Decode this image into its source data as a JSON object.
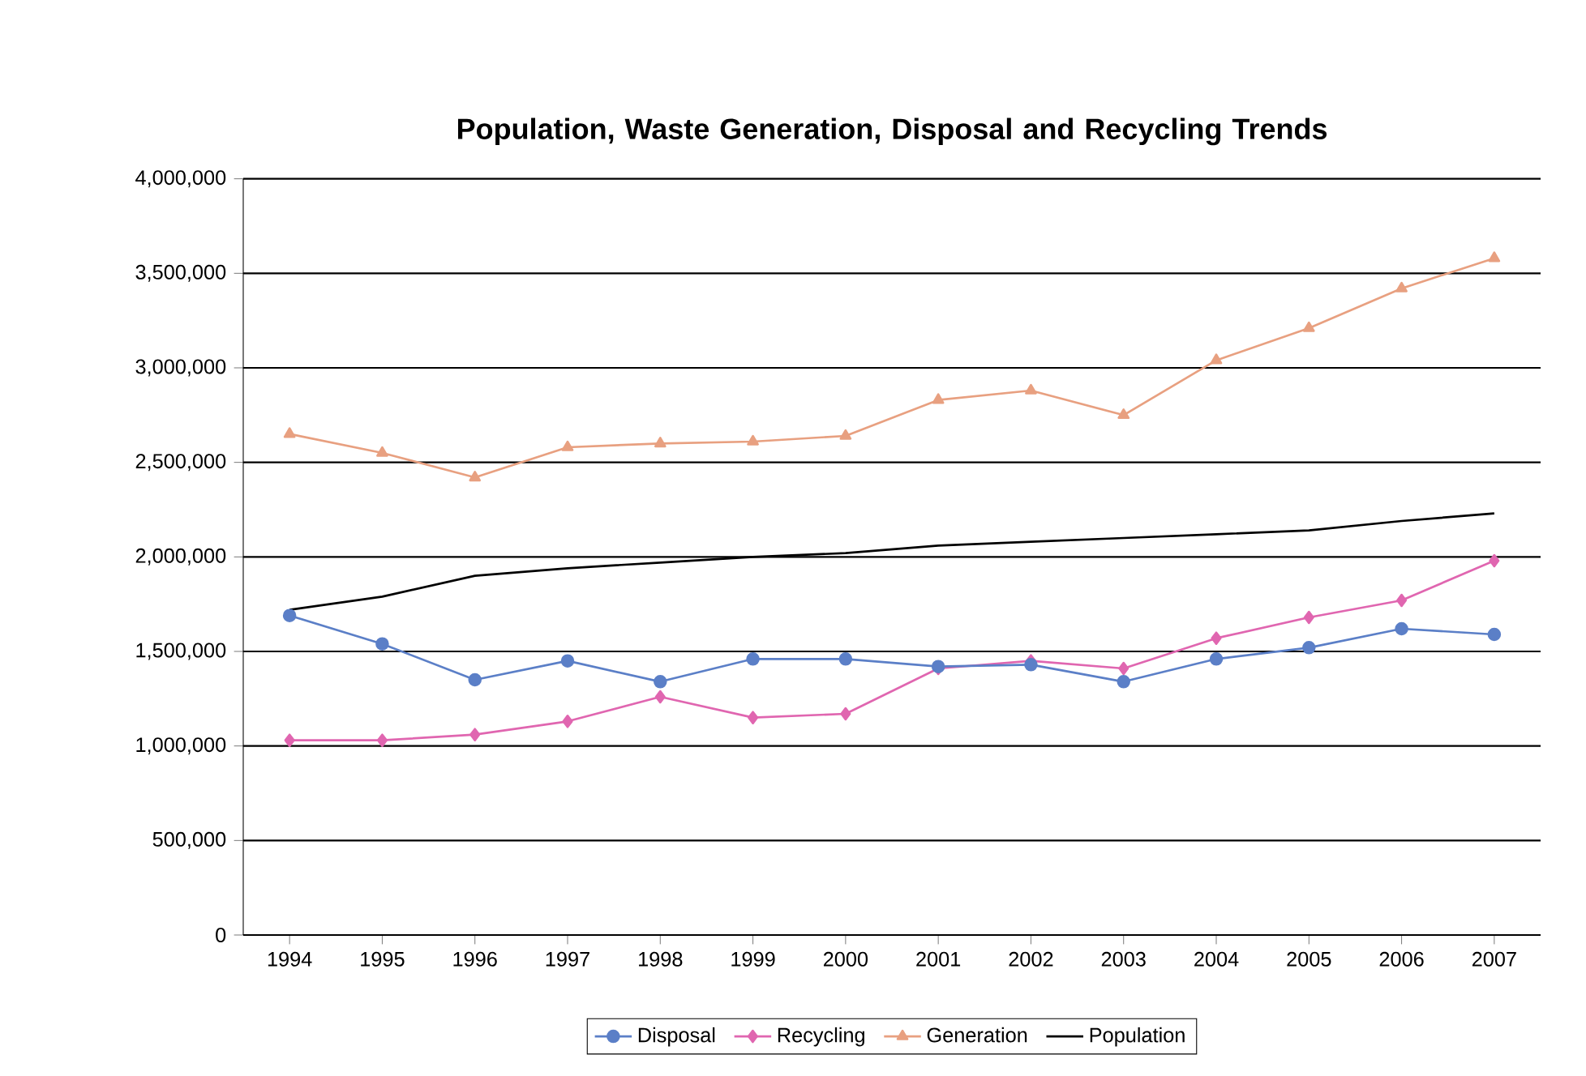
{
  "chart_data": {
    "type": "line",
    "title": "Population, Waste Generation, Disposal and Recycling Trends",
    "categories": [
      "1994",
      "1995",
      "1996",
      "1997",
      "1998",
      "1999",
      "2000",
      "2001",
      "2002",
      "2003",
      "2004",
      "2005",
      "2006",
      "2007"
    ],
    "series": [
      {
        "name": "Disposal",
        "color": "#5b7fc7",
        "marker": "circle",
        "values": [
          1690000,
          1540000,
          1350000,
          1450000,
          1340000,
          1460000,
          1460000,
          1420000,
          1430000,
          1340000,
          1460000,
          1520000,
          1620000,
          1590000
        ]
      },
      {
        "name": "Recycling",
        "color": "#e066b0",
        "marker": "diamond",
        "values": [
          1030000,
          1030000,
          1060000,
          1130000,
          1260000,
          1150000,
          1170000,
          1410000,
          1450000,
          1410000,
          1570000,
          1680000,
          1770000,
          1980000
        ]
      },
      {
        "name": "Generation",
        "color": "#e8a080",
        "marker": "triangle",
        "values": [
          2650000,
          2550000,
          2420000,
          2580000,
          2600000,
          2610000,
          2640000,
          2830000,
          2880000,
          2750000,
          3040000,
          3210000,
          3420000,
          3580000
        ]
      },
      {
        "name": "Population",
        "color": "#000000",
        "marker": "none",
        "values": [
          1720000,
          1790000,
          1900000,
          1940000,
          1970000,
          2000000,
          2020000,
          2060000,
          2080000,
          2100000,
          2120000,
          2140000,
          2190000,
          2230000
        ]
      }
    ],
    "ylim": [
      0,
      4000000
    ],
    "yticks": [
      {
        "value": 0,
        "label": "0"
      },
      {
        "value": 500000,
        "label": "500,000"
      },
      {
        "value": 1000000,
        "label": "1,000,000"
      },
      {
        "value": 1500000,
        "label": "1,500,000"
      },
      {
        "value": 2000000,
        "label": "2,000,000"
      },
      {
        "value": 2500000,
        "label": "2,500,000"
      },
      {
        "value": 3000000,
        "label": "3,000,000"
      },
      {
        "value": 3500000,
        "label": "3,500,000"
      },
      {
        "value": 4000000,
        "label": "4,000,000"
      }
    ],
    "grid": "y",
    "legend": "bottom",
    "line_style": "solid"
  }
}
